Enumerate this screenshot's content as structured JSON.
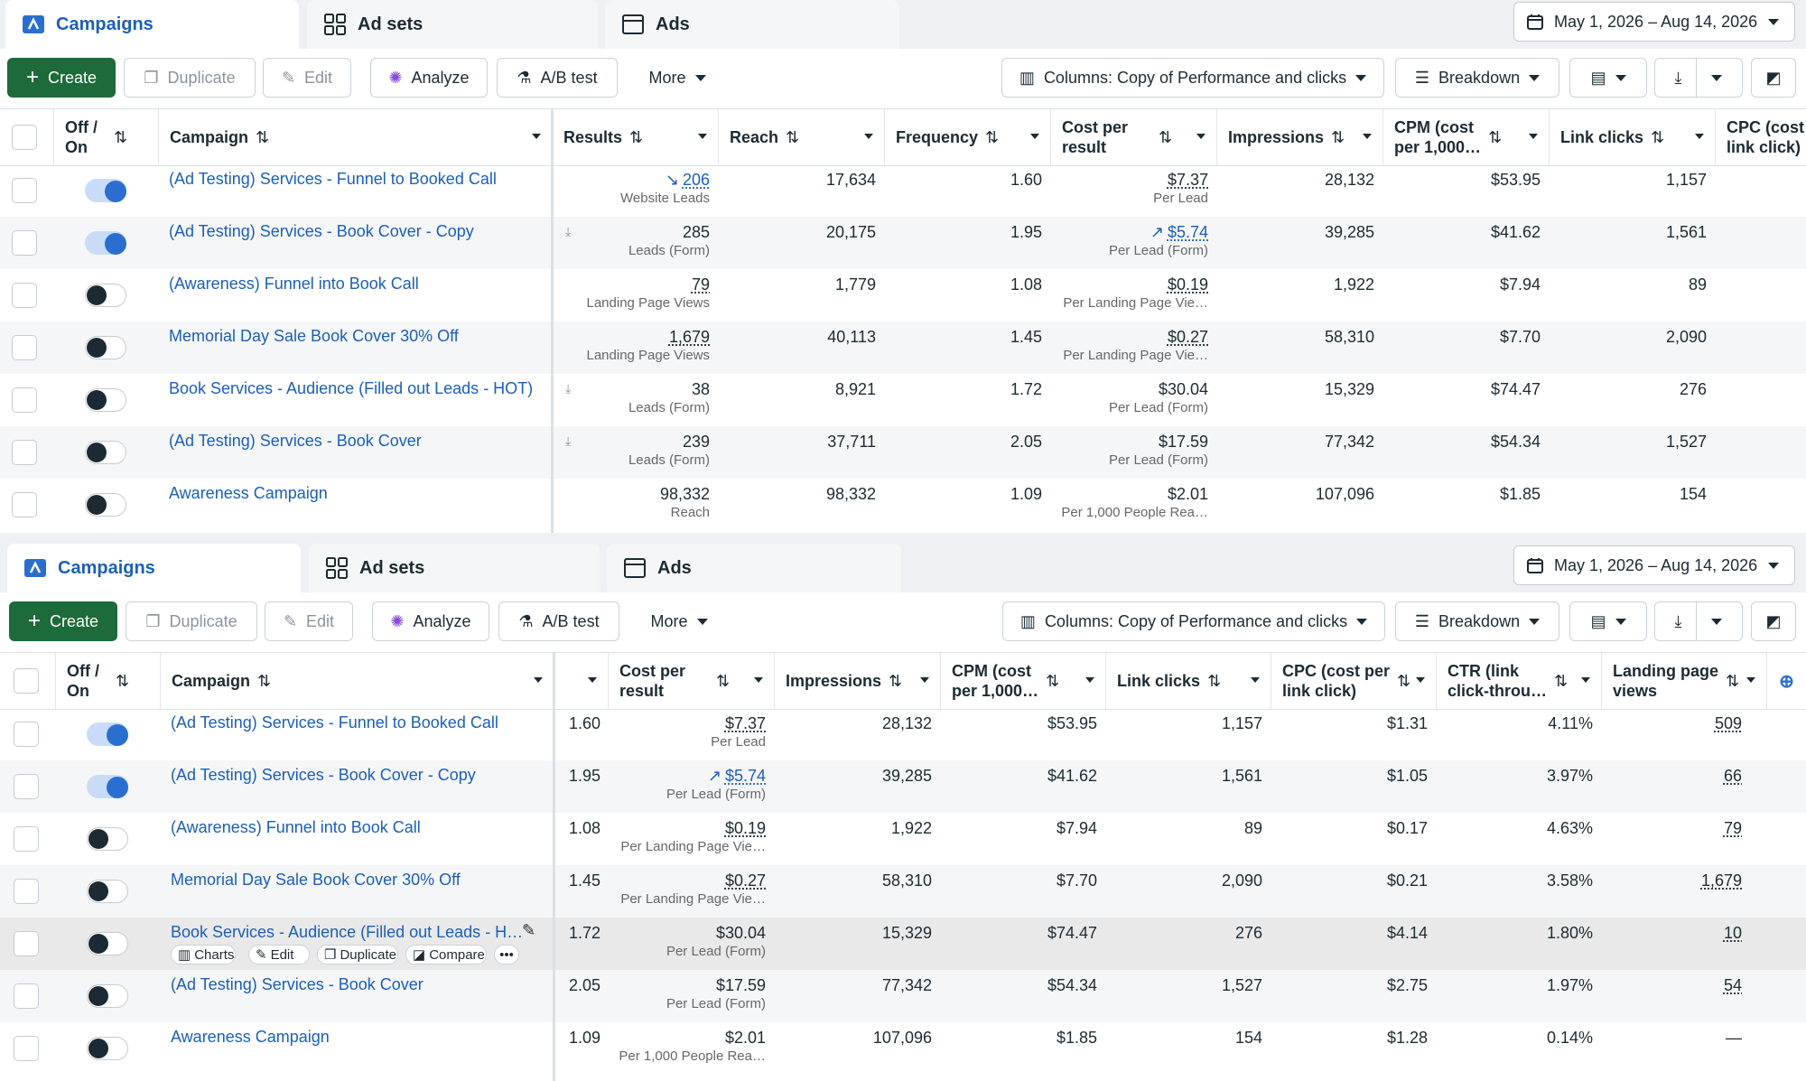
{
  "tabs": {
    "campaigns": "Campaigns",
    "adsets": "Ad sets",
    "ads": "Ads"
  },
  "date_range": "May 1, 2026 – Aug 14, 2026",
  "toolbar": {
    "create": "Create",
    "duplicate": "Duplicate",
    "edit": "Edit",
    "analyze": "Analyze",
    "ab_test": "A/B test",
    "more": "More",
    "columns": "Columns: Copy of Performance and clicks",
    "breakdown": "Breakdown"
  },
  "headers": {
    "offon_1": "Off /",
    "offon_2": "On",
    "campaign": "Campaign",
    "results": "Results",
    "reach": "Reach",
    "frequency": "Frequency",
    "cpr_1": "Cost per",
    "cpr_2": "result",
    "impressions": "Impressions",
    "cpm_1": "CPM (cost",
    "cpm_2": "per 1,000…",
    "link_clicks": "Link clicks",
    "cpc_1": "CPC (cost",
    "cpc_2": "link click)",
    "cpc_b1": "CPC (cost per",
    "cpc_b2": "link click)",
    "ctr_1": "CTR (link",
    "ctr_2": "click-throu…",
    "lpv_1": "Landing page",
    "lpv_2": "views"
  },
  "rows": [
    {
      "on": true,
      "name": "(Ad Testing) Services - Funnel to Booked Call",
      "result": "206",
      "result_type": "Website Leads",
      "reach": "17,634",
      "frequency": "1.60",
      "cpr": "$7.37",
      "cpr_type": "Per Lead",
      "impressions": "28,132",
      "cpm": "$53.95",
      "link_clicks": "1,157",
      "cpc": "$1.31",
      "ctr": "4.11%",
      "lpv": "509"
    },
    {
      "on": true,
      "name": "(Ad Testing) Services - Book Cover - Copy",
      "result": "285",
      "result_type": "Leads (Form)",
      "reach": "20,175",
      "frequency": "1.95",
      "cpr": "$5.74",
      "cpr_type": "Per Lead (Form)",
      "impressions": "39,285",
      "cpm": "$41.62",
      "link_clicks": "1,561",
      "cpc": "$1.05",
      "ctr": "3.97%",
      "lpv": "66"
    },
    {
      "on": false,
      "name": "(Awareness) Funnel into Book Call",
      "result": "79",
      "result_type": "Landing Page Views",
      "reach": "1,779",
      "frequency": "1.08",
      "cpr": "$0.19",
      "cpr_type": "Per Landing Page Vie…",
      "impressions": "1,922",
      "cpm": "$7.94",
      "link_clicks": "89",
      "cpc": "$0.17",
      "ctr": "4.63%",
      "lpv": "79"
    },
    {
      "on": false,
      "name": "Memorial Day Sale Book Cover 30% Off",
      "result": "1,679",
      "result_type": "Landing Page Views",
      "reach": "40,113",
      "frequency": "1.45",
      "cpr": "$0.27",
      "cpr_type": "Per Landing Page Vie…",
      "impressions": "58,310",
      "cpm": "$7.70",
      "link_clicks": "2,090",
      "cpc": "$0.21",
      "ctr": "3.58%",
      "lpv": "1,679"
    },
    {
      "on": false,
      "name": "Book Services - Audience (Filled out Leads - HOT)",
      "name_short": "Book Services - Audience (Filled out Leads - H…",
      "result": "38",
      "result_type": "Leads (Form)",
      "reach": "8,921",
      "frequency": "1.72",
      "cpr": "$30.04",
      "cpr_type": "Per Lead (Form)",
      "impressions": "15,329",
      "cpm": "$74.47",
      "link_clicks": "276",
      "cpc": "$4.14",
      "ctr": "1.80%",
      "lpv": "10"
    },
    {
      "on": false,
      "name": "(Ad Testing) Services - Book Cover",
      "result": "239",
      "result_type": "Leads (Form)",
      "reach": "37,711",
      "frequency": "2.05",
      "cpr": "$17.59",
      "cpr_type": "Per Lead (Form)",
      "impressions": "77,342",
      "cpm": "$54.34",
      "link_clicks": "1,527",
      "cpc": "$2.75",
      "ctr": "1.97%",
      "lpv": "54"
    },
    {
      "on": false,
      "name": "Awareness Campaign",
      "result": "98,332",
      "result_type": "Reach",
      "reach": "98,332",
      "frequency": "1.09",
      "cpr": "$2.01",
      "cpr_type": "Per 1,000 People Rea…",
      "impressions": "107,096",
      "cpm": "$1.85",
      "link_clicks": "154",
      "cpc": "$1.28",
      "ctr": "0.14%",
      "lpv": "—"
    }
  ],
  "hover_actions": {
    "charts": "Charts",
    "edit": "Edit",
    "duplicate": "Duplicate",
    "compare": "Compare",
    "more": "•••"
  }
}
